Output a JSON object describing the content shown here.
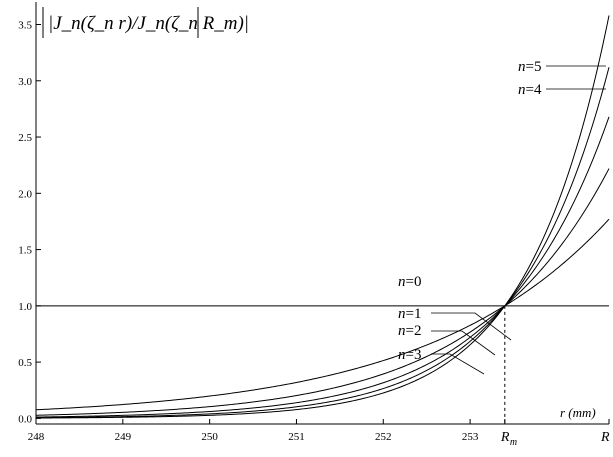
{
  "chart_data": {
    "type": "line",
    "title": "",
    "ylabel": "|J_n(ζ_n r)/J_n(ζ_n R_m)|",
    "xlabel": "r (mm)",
    "xlim": [
      248,
      254.6
    ],
    "ylim": [
      -0.05,
      3.7
    ],
    "x_ticks": [
      248,
      249,
      250,
      251,
      252,
      253
    ],
    "x_tick_labels": [
      "248",
      "249",
      "250",
      "251",
      "252",
      "253"
    ],
    "x_special_ticks": [
      {
        "label": "R",
        "sub": "m",
        "x": 253.4
      },
      {
        "label": "R",
        "sub": "",
        "x": 254.6
      }
    ],
    "y_ticks": [
      0.0,
      0.5,
      1.0,
      1.5,
      2.0,
      2.5,
      3.0,
      3.5
    ],
    "y_tick_labels": [
      "0.0",
      "0.5",
      "1.0",
      "1.5",
      "2.0",
      "2.5",
      "3.0",
      "3.5"
    ],
    "grid": false,
    "reference_line": {
      "x": 253.4,
      "style": "dashed"
    },
    "series": [
      {
        "name": "n=0",
        "label_parts": [
          "n",
          "=0"
        ],
        "decay": null,
        "x": [
          248,
          254.6
        ],
        "values": [
          1.0,
          1.0
        ]
      },
      {
        "name": "n=1",
        "label_parts": [
          "n",
          "=1"
        ],
        "decay": 1.77,
        "x": [
          248,
          249,
          250,
          251,
          252,
          253,
          253.4,
          254,
          254.6
        ],
        "values": [
          0.001,
          0.005,
          0.017,
          0.055,
          0.17,
          0.63,
          1.0,
          1.41,
          1.77
        ]
      },
      {
        "name": "n=2",
        "label_parts": [
          "n",
          "=2"
        ],
        "decay": 2.22,
        "x": [
          248,
          249,
          250,
          251,
          252,
          253,
          253.4,
          254,
          254.6
        ],
        "values": [
          0.0,
          0.001,
          0.005,
          0.024,
          0.11,
          0.58,
          1.0,
          1.53,
          2.22
        ]
      },
      {
        "name": "n=3",
        "label_parts": [
          "n",
          "=3"
        ],
        "decay": 2.68,
        "x": [
          248,
          249,
          250,
          251,
          252,
          253,
          253.4,
          254,
          254.6
        ],
        "values": [
          0.0,
          0.0,
          0.002,
          0.01,
          0.07,
          0.54,
          1.0,
          1.68,
          2.68
        ]
      },
      {
        "name": "n=4",
        "label_parts": [
          "n",
          "=4"
        ],
        "decay": 3.12,
        "x": [
          248,
          249,
          250,
          251,
          252,
          253,
          253.4,
          254,
          254.6
        ],
        "values": [
          0.0,
          0.0,
          0.001,
          0.005,
          0.05,
          0.51,
          1.0,
          1.81,
          3.12
        ]
      },
      {
        "name": "n=5",
        "label_parts": [
          "n",
          "=5"
        ],
        "decay": 3.58,
        "x": [
          248,
          249,
          250,
          251,
          252,
          253,
          253.4,
          254,
          254.6
        ],
        "values": [
          0.0,
          0.0,
          0.0,
          0.002,
          0.03,
          0.47,
          1.0,
          1.94,
          3.58
        ]
      }
    ]
  }
}
